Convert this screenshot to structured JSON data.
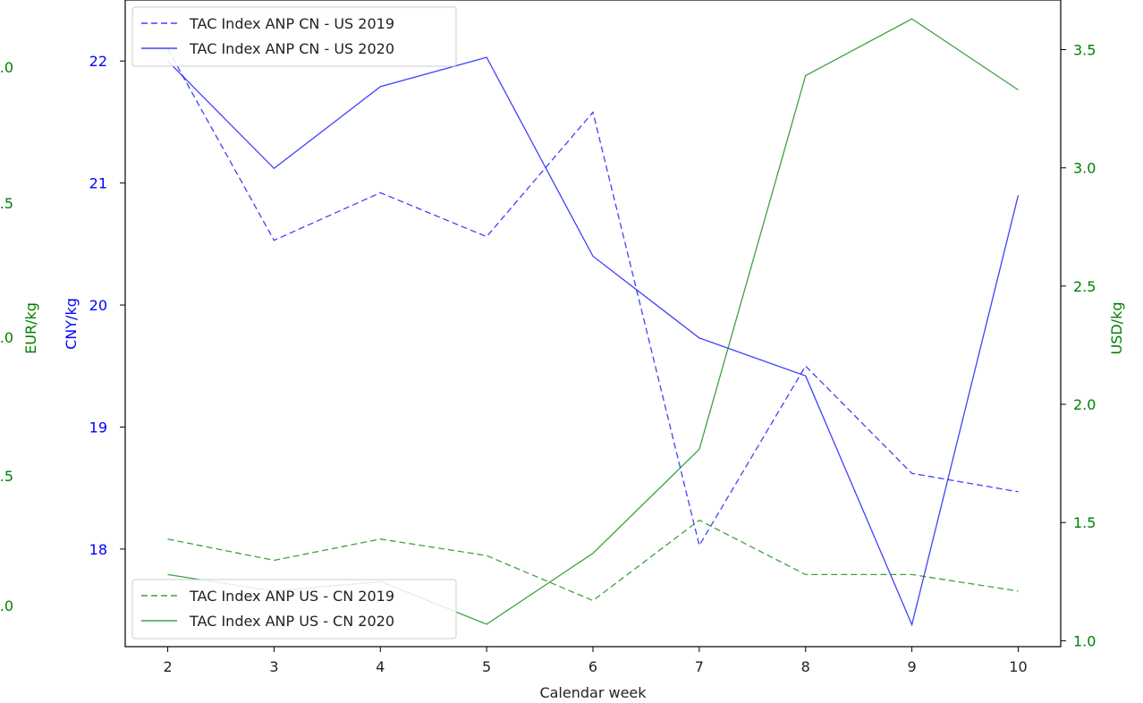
{
  "chart_data": {
    "type": "line",
    "xlabel": "Calendar week",
    "x": [
      2,
      3,
      4,
      5,
      6,
      7,
      8,
      9,
      10
    ],
    "xticks": [
      "2",
      "3",
      "4",
      "5",
      "6",
      "7",
      "8",
      "9",
      "10"
    ],
    "xlim": [
      1.6,
      10.4
    ],
    "axes": {
      "cny": {
        "label": "CNY/kg",
        "side": "left",
        "color": "#0000ff",
        "ylim": [
          17.2,
          22.5
        ],
        "ticks": [
          "18",
          "19",
          "20",
          "21",
          "22"
        ]
      },
      "eur": {
        "label": "EUR/kg",
        "side": "left-outer",
        "color": "#008000",
        "ticks": [
          ".0",
          ".5",
          ".0",
          ".5",
          ".0"
        ]
      },
      "usd": {
        "label": "USD/kg",
        "side": "right",
        "color": "#008000",
        "ylim": [
          0.975,
          3.71
        ],
        "ticks": [
          "1.0",
          "1.5",
          "2.0",
          "2.5",
          "3.0",
          "3.5"
        ]
      }
    },
    "series": [
      {
        "name": "TAC Index ANP CN - US 2019",
        "axis": "cny",
        "color": "#0000ff",
        "style": "dashed",
        "values": [
          22.1,
          20.53,
          20.92,
          20.56,
          21.58,
          18.03,
          19.5,
          18.62,
          18.47
        ]
      },
      {
        "name": "TAC Index ANP CN - US 2020",
        "axis": "cny",
        "color": "#0000ff",
        "style": "solid",
        "values": [
          22.0,
          21.12,
          21.79,
          22.03,
          20.4,
          19.73,
          19.42,
          17.38,
          20.9
        ]
      },
      {
        "name": "TAC Index ANP US - CN 2019",
        "axis": "usd",
        "color": "#008000",
        "style": "dashed",
        "values": [
          1.43,
          1.34,
          1.43,
          1.36,
          1.17,
          1.51,
          1.28,
          1.28,
          1.21
        ]
      },
      {
        "name": "TAC Index ANP US - CN 2020",
        "axis": "usd",
        "color": "#008000",
        "style": "solid",
        "values": [
          1.28,
          1.21,
          1.25,
          1.07,
          1.37,
          1.81,
          3.39,
          3.63,
          3.33
        ]
      }
    ],
    "legends": [
      {
        "placement": "top-left",
        "entries": [
          0,
          1
        ]
      },
      {
        "placement": "bottom-left",
        "entries": [
          2,
          3
        ]
      }
    ],
    "grid": false
  }
}
